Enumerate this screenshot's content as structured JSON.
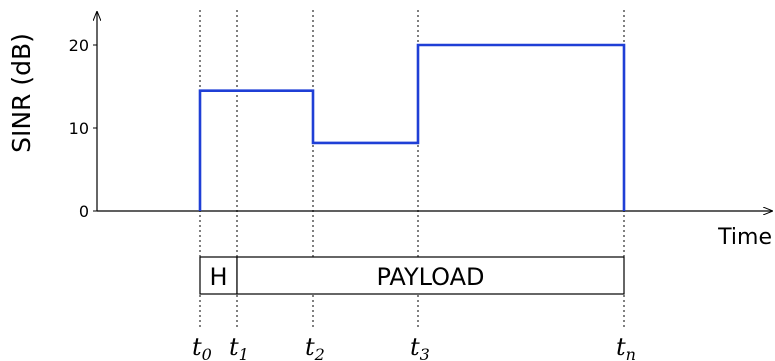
{
  "chart_data": {
    "type": "line",
    "title": "",
    "xlabel": "Time",
    "ylabel": "SINR (dB)",
    "ylim": [
      0,
      25
    ],
    "y_ticks": [
      0,
      10,
      20
    ],
    "y_tick_labels": [
      "0",
      "10",
      "20"
    ],
    "x_markers": [
      {
        "label": "t",
        "sub": "0"
      },
      {
        "label": "t",
        "sub": "1"
      },
      {
        "label": "t",
        "sub": "2"
      },
      {
        "label": "t",
        "sub": "3"
      },
      {
        "label": "t",
        "sub": "n"
      }
    ],
    "series": [
      {
        "shape": "step",
        "segments": [
          {
            "from": "t0",
            "to": "t2",
            "value": 14.5
          },
          {
            "from": "t2",
            "to": "t3",
            "value": 8.2
          },
          {
            "from": "t3",
            "to": "tn",
            "value": 20
          }
        ]
      }
    ],
    "frame": {
      "fields": [
        {
          "label": "H",
          "from": "t0",
          "to": "t1"
        },
        {
          "label": "PAYLOAD",
          "from": "t1",
          "to": "tn"
        }
      ]
    },
    "colors": {
      "series": "#1f3fd6",
      "axis": "#000000"
    },
    "grid": false
  }
}
